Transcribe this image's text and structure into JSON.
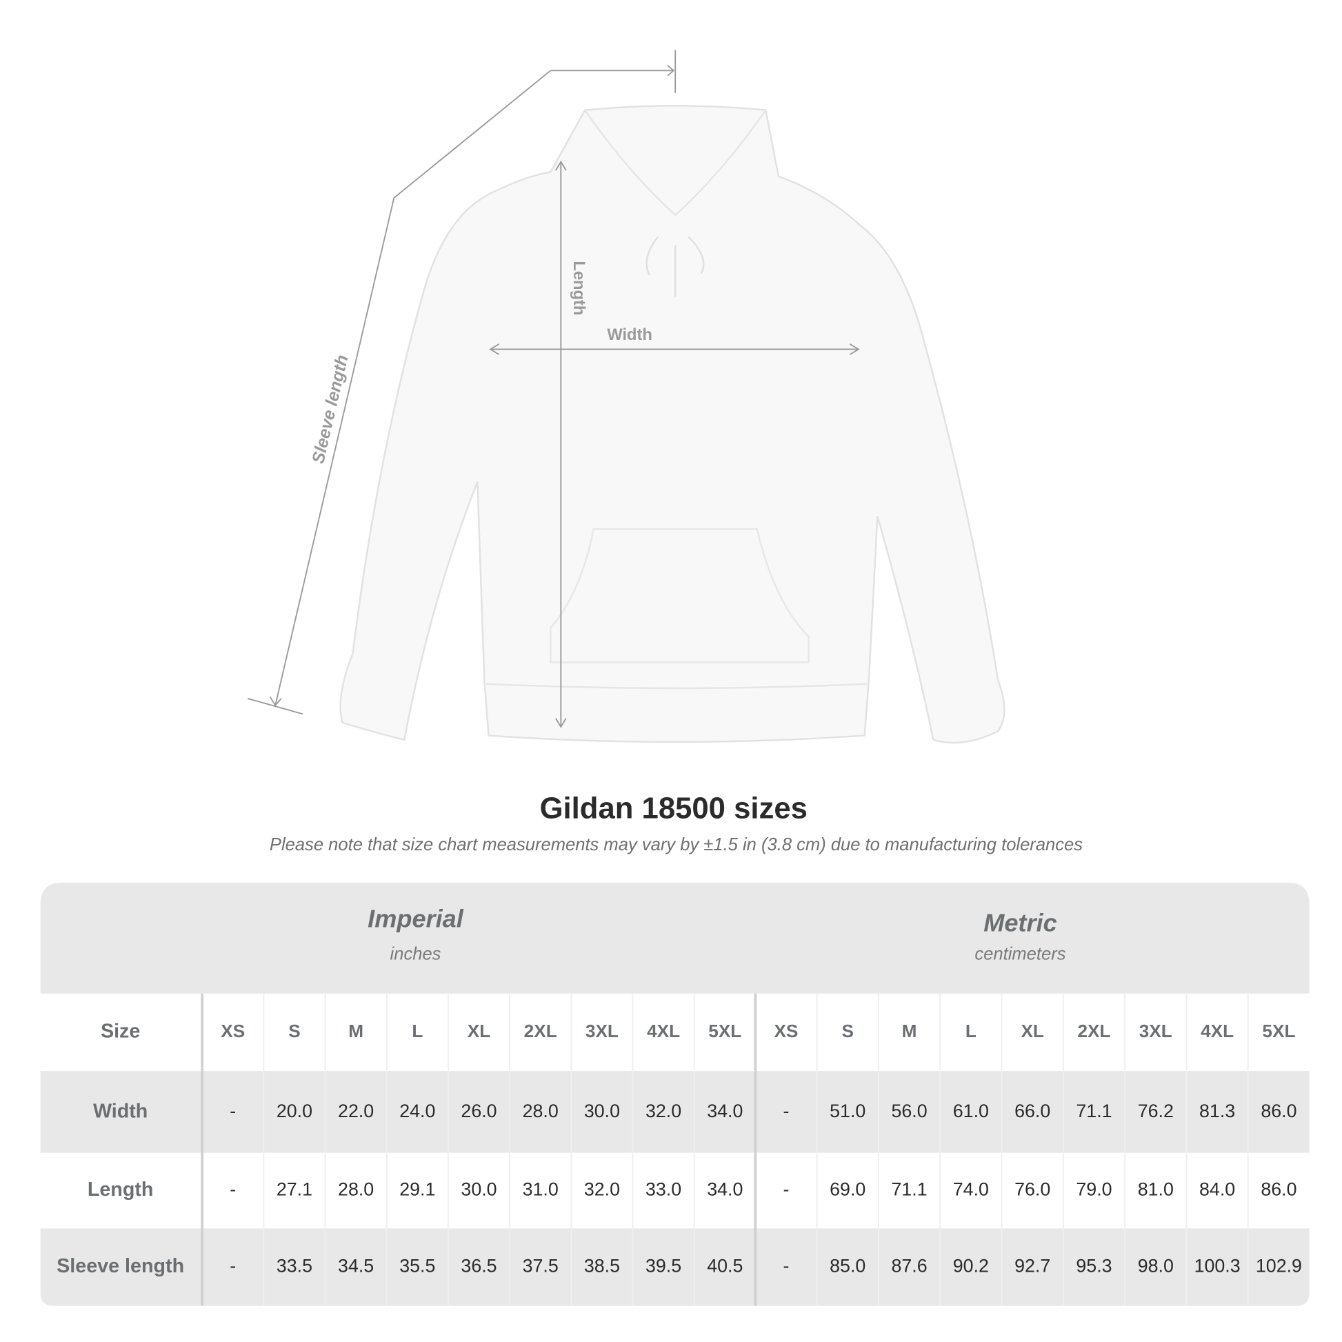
{
  "diagram": {
    "labels": {
      "sleeve_length": "Sleeve length",
      "length": "Length",
      "width": "Width"
    }
  },
  "header": {
    "title": "Gildan 18500 sizes",
    "note": "Please note that size chart measurements may vary by ±1.5 in (3.8 cm) due to manufacturing tolerances"
  },
  "table": {
    "groups": [
      {
        "name": "Imperial",
        "unit": "inches"
      },
      {
        "name": "Metric",
        "unit": "centimeters"
      }
    ],
    "columns": [
      "Size",
      "XS",
      "S",
      "M",
      "L",
      "XL",
      "2XL",
      "3XL",
      "4XL",
      "5XL",
      "XS",
      "S",
      "M",
      "L",
      "XL",
      "2XL",
      "3XL",
      "4XL",
      "5XL"
    ],
    "rows": [
      [
        "Width",
        "-",
        "20.0",
        "22.0",
        "24.0",
        "26.0",
        "28.0",
        "30.0",
        "32.0",
        "34.0",
        "-",
        "51.0",
        "56.0",
        "61.0",
        "66.0",
        "71.1",
        "76.2",
        "81.3",
        "86.0"
      ],
      [
        "Length",
        "-",
        "27.1",
        "28.0",
        "29.1",
        "30.0",
        "31.0",
        "32.0",
        "33.0",
        "34.0",
        "-",
        "69.0",
        "71.1",
        "74.0",
        "76.0",
        "79.0",
        "81.0",
        "84.0",
        "86.0"
      ],
      [
        "Sleeve length",
        "-",
        "33.5",
        "34.5",
        "35.5",
        "36.5",
        "37.5",
        "38.5",
        "39.5",
        "40.5",
        "-",
        "85.0",
        "87.6",
        "90.2",
        "92.7",
        "95.3",
        "98.0",
        "100.3",
        "102.9"
      ]
    ]
  }
}
